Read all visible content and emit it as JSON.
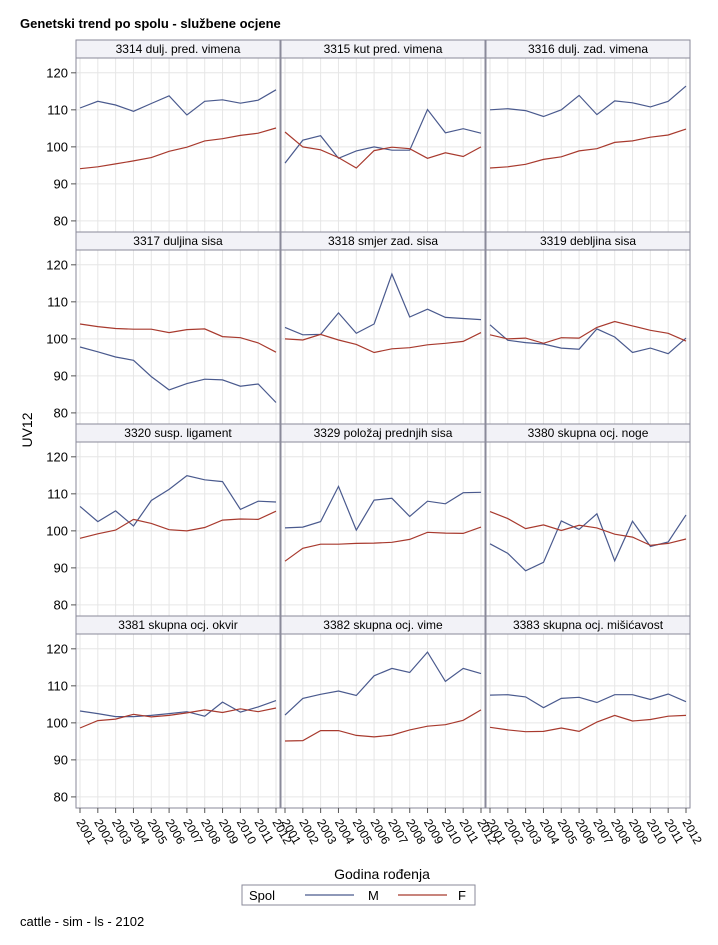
{
  "title": "Genetski trend po spolu - službene ocjene",
  "footer": "cattle - sim - ls - 2102",
  "colors": {
    "M": "#4a5a8e",
    "F": "#a83a2e",
    "grid": "#e6e6e6",
    "header_bg": "#f2f2f7",
    "frame": "#8a8a9a"
  },
  "chart_data": {
    "type": "line",
    "ylabel": "UV12",
    "xlabel": "Godina rođenja",
    "ylim": [
      77,
      124
    ],
    "yticks": [
      80,
      90,
      100,
      110,
      120
    ],
    "x": [
      "2001",
      "2002",
      "2003",
      "2004",
      "2005",
      "2006",
      "2007",
      "2008",
      "2009",
      "2010",
      "2011",
      "2012"
    ],
    "legend": {
      "title": "Spol",
      "entries": [
        "M",
        "F"
      ]
    },
    "panels": [
      {
        "title": "3314 dulj. pred. vimena",
        "series": [
          {
            "name": "M",
            "values": [
              110.5,
              112.3,
              111.3,
              109.6,
              111.7,
              113.8,
              108.6,
              112.3,
              112.7,
              111.8,
              112.6,
              115.4
            ]
          },
          {
            "name": "F",
            "values": [
              94.1,
              94.6,
              95.4,
              96.2,
              97.1,
              98.8,
              99.9,
              101.6,
              102.2,
              103.1,
              103.7,
              105.1
            ]
          }
        ]
      },
      {
        "title": "3315 kut pred. vimena",
        "series": [
          {
            "name": "M",
            "values": [
              95.6,
              101.8,
              103.0,
              96.9,
              98.9,
              100.0,
              99.1,
              99.1,
              110.1,
              103.8,
              104.9,
              103.7
            ]
          },
          {
            "name": "F",
            "values": [
              104.0,
              100.0,
              99.2,
              97.1,
              94.3,
              99.0,
              99.9,
              99.5,
              96.9,
              98.4,
              97.4,
              100.0
            ]
          }
        ]
      },
      {
        "title": "3316 dulj. zad. vimena",
        "series": [
          {
            "name": "M",
            "values": [
              110.0,
              110.3,
              109.8,
              108.2,
              110.0,
              113.9,
              108.7,
              112.4,
              111.9,
              110.8,
              112.3,
              116.4
            ]
          },
          {
            "name": "F",
            "values": [
              94.3,
              94.6,
              95.3,
              96.6,
              97.3,
              98.9,
              99.5,
              101.2,
              101.6,
              102.6,
              103.2,
              104.8
            ]
          }
        ]
      },
      {
        "title": "3317 duljina sisa",
        "series": [
          {
            "name": "M",
            "values": [
              97.8,
              96.5,
              95.1,
              94.2,
              89.8,
              86.2,
              87.9,
              89.1,
              88.9,
              87.2,
              87.8,
              82.8
            ]
          },
          {
            "name": "F",
            "values": [
              104.0,
              103.3,
              102.8,
              102.6,
              102.6,
              101.7,
              102.5,
              102.7,
              100.6,
              100.3,
              98.9,
              96.4
            ]
          }
        ]
      },
      {
        "title": "3318 smjer zad. sisa",
        "series": [
          {
            "name": "M",
            "values": [
              103.1,
              101.1,
              101.2,
              107.0,
              101.5,
              104.0,
              117.5,
              105.9,
              108.0,
              105.8,
              105.5,
              105.2
            ]
          },
          {
            "name": "F",
            "values": [
              100.0,
              99.7,
              101.2,
              99.7,
              98.5,
              96.3,
              97.3,
              97.6,
              98.4,
              98.8,
              99.3,
              101.7
            ]
          }
        ]
      },
      {
        "title": "3319 debljina sisa",
        "series": [
          {
            "name": "M",
            "values": [
              103.8,
              99.6,
              99.0,
              98.6,
              97.5,
              97.2,
              102.7,
              100.5,
              96.3,
              97.5,
              96.0,
              100.2
            ]
          },
          {
            "name": "F",
            "values": [
              101.1,
              100.0,
              100.2,
              98.8,
              100.3,
              100.2,
              103.1,
              104.7,
              103.5,
              102.3,
              101.5,
              99.4
            ]
          }
        ]
      },
      {
        "title": "3320 susp. ligament",
        "series": [
          {
            "name": "M",
            "values": [
              106.6,
              102.5,
              105.4,
              101.3,
              108.2,
              111.2,
              114.9,
              113.8,
              113.3,
              105.8,
              108.0,
              107.8
            ]
          },
          {
            "name": "F",
            "values": [
              98.0,
              99.2,
              100.2,
              103.1,
              102.0,
              100.3,
              100.0,
              100.9,
              102.9,
              103.2,
              103.1,
              105.3
            ]
          }
        ]
      },
      {
        "title": "3329 položaj prednjih sisa",
        "series": [
          {
            "name": "M",
            "values": [
              100.8,
              101.0,
              102.5,
              112.0,
              100.2,
              108.3,
              108.8,
              103.9,
              108.0,
              107.3,
              110.3,
              110.4
            ]
          },
          {
            "name": "F",
            "values": [
              91.8,
              95.3,
              96.4,
              96.4,
              96.6,
              96.7,
              96.9,
              97.7,
              99.6,
              99.4,
              99.3,
              101.0
            ]
          }
        ]
      },
      {
        "title": "3380 skupna ocj. noge",
        "series": [
          {
            "name": "M",
            "values": [
              96.5,
              93.9,
              89.2,
              91.5,
              102.7,
              100.4,
              104.6,
              91.9,
              102.6,
              95.8,
              97.0,
              104.3
            ]
          },
          {
            "name": "F",
            "values": [
              105.2,
              103.3,
              100.6,
              101.6,
              100.1,
              101.5,
              100.8,
              99.1,
              98.3,
              96.1,
              96.6,
              97.8
            ]
          }
        ]
      },
      {
        "title": "3381 skupna ocj. okvir",
        "series": [
          {
            "name": "M",
            "values": [
              103.2,
              102.5,
              101.7,
              101.7,
              102.0,
              102.5,
              103.0,
              101.8,
              105.6,
              102.9,
              104.3,
              106.0
            ]
          },
          {
            "name": "F",
            "values": [
              98.6,
              100.6,
              101.0,
              102.3,
              101.6,
              102.0,
              102.7,
              103.5,
              102.8,
              103.8,
              103.0,
              104.0
            ]
          }
        ]
      },
      {
        "title": "3382 skupna ocj. vime",
        "series": [
          {
            "name": "M",
            "values": [
              102.1,
              106.6,
              107.7,
              108.6,
              107.4,
              112.7,
              114.7,
              113.6,
              119.1,
              111.2,
              114.7,
              113.3
            ]
          },
          {
            "name": "F",
            "values": [
              95.1,
              95.2,
              97.9,
              97.9,
              96.6,
              96.2,
              96.7,
              98.1,
              99.1,
              99.5,
              100.7,
              103.5
            ]
          }
        ]
      },
      {
        "title": "3383 skupna ocj. mišićavost",
        "series": [
          {
            "name": "M",
            "values": [
              107.5,
              107.6,
              107.0,
              104.1,
              106.6,
              106.9,
              105.5,
              107.6,
              107.6,
              106.3,
              107.8,
              105.7
            ]
          },
          {
            "name": "F",
            "values": [
              98.8,
              98.1,
              97.6,
              97.7,
              98.6,
              97.7,
              100.2,
              102.0,
              100.5,
              100.9,
              101.8,
              102.0
            ]
          }
        ]
      }
    ]
  }
}
